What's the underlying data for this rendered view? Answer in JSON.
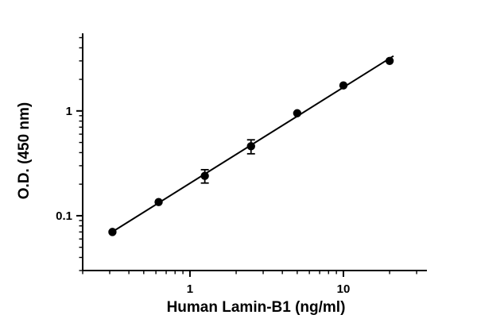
{
  "chart_data": {
    "type": "scatter",
    "x": [
      0.3125,
      0.625,
      1.25,
      2.5,
      5,
      10,
      20
    ],
    "y": [
      0.07,
      0.135,
      0.24,
      0.46,
      0.95,
      1.75,
      3.0
    ],
    "y_err": [
      0,
      0,
      0.035,
      0.07,
      0,
      0,
      0
    ],
    "xlabel": "Human Lamin-B1 (ng/ml)",
    "ylabel": "O.D. (450 nm)",
    "x_scale": "log",
    "y_scale": "log",
    "xlim": [
      0.2,
      35
    ],
    "ylim": [
      0.03,
      5.5
    ],
    "x_tick_labels": [
      "1",
      "10"
    ],
    "y_tick_labels": [
      "0.1",
      "1"
    ],
    "grid": false,
    "legend": false,
    "fit_line": true,
    "marker": "circle",
    "marker_color": "#000000",
    "line_color": "#000000",
    "background_color": "#ffffff"
  }
}
